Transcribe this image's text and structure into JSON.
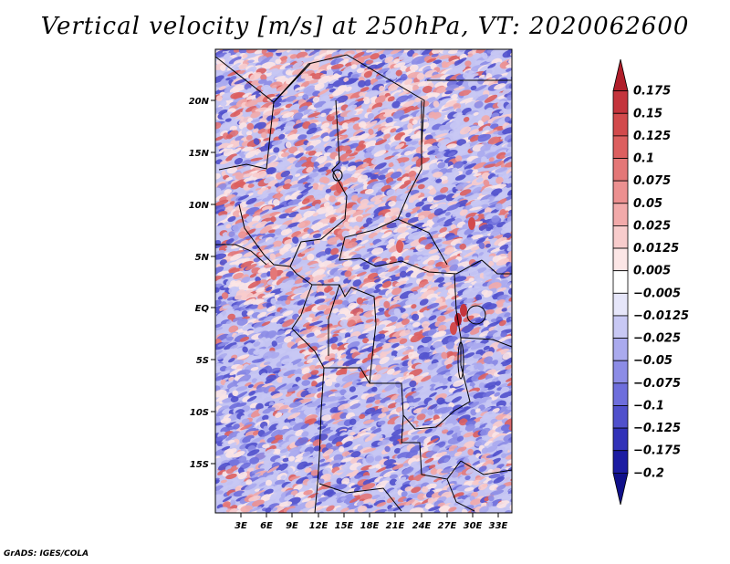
{
  "title": "Vertical velocity [m/s] at 250hPa, VT: 2020062600",
  "credit": "GrADS: IGES/COLA",
  "latitude_labels": [
    "20N",
    "15N",
    "10N",
    "5N",
    "EQ",
    "5S",
    "10S",
    "15S"
  ],
  "longitude_labels": [
    "3E",
    "6E",
    "9E",
    "12E",
    "15E",
    "18E",
    "21E",
    "24E",
    "27E",
    "30E",
    "33E"
  ],
  "colorbar": {
    "labels": [
      "0.175",
      "0.15",
      "0.125",
      "0.1",
      "0.075",
      "0.05",
      "0.025",
      "0.0125",
      "0.005",
      "−0.005",
      "−0.0125",
      "−0.025",
      "−0.05",
      "−0.075",
      "−0.1",
      "−0.125",
      "−0.175",
      "−0.2"
    ],
    "colors": [
      "#b01e2a",
      "#c4343c",
      "#d24a4c",
      "#dc5f5f",
      "#e47777",
      "#ec9090",
      "#f2aaaa",
      "#f8cccc",
      "#fce6e6",
      "#ffffff",
      "#e6e6fa",
      "#c8c8f4",
      "#aaaaee",
      "#8c8ce6",
      "#6e6edc",
      "#5050cc",
      "#3232b8",
      "#1c1ca2",
      "#10108a"
    ]
  },
  "chart_data": {
    "type": "heatmap",
    "variable": "Vertical velocity",
    "units": "m/s",
    "level": "250hPa",
    "valid_time": "2020062600",
    "lat_ticks": [
      "20N",
      "15N",
      "10N",
      "5N",
      "EQ",
      "5S",
      "10S",
      "15S"
    ],
    "lon_ticks": [
      "3E",
      "6E",
      "9E",
      "12E",
      "15E",
      "18E",
      "21E",
      "24E",
      "27E",
      "30E",
      "33E"
    ],
    "lat_range": [
      -20,
      24.5
    ],
    "lon_range": [
      0,
      34.5
    ],
    "levels": [
      -0.2,
      -0.175,
      -0.125,
      -0.1,
      -0.075,
      -0.05,
      -0.025,
      -0.0125,
      -0.005,
      0.005,
      0.0125,
      0.025,
      0.05,
      0.075,
      0.1,
      0.125,
      0.15,
      0.175
    ]
  }
}
